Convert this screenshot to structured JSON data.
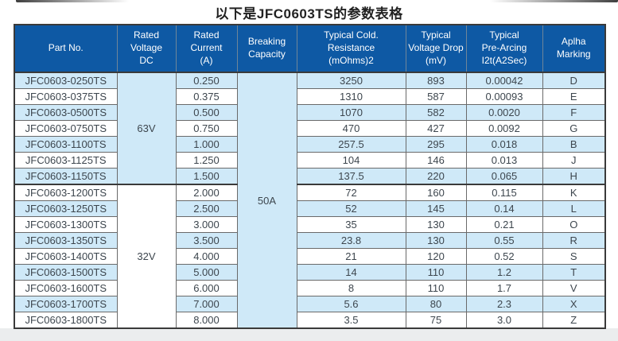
{
  "title": "以下是JFC0603TS的参数表格",
  "colors": {
    "header_bg": "#0e59a4",
    "header_text": "#ffffff",
    "row_bg": "#ffffff",
    "row_alt_bg": "#cfe9f8",
    "grid_line": "#6a6a6a",
    "outer_border": "#3a3a3a",
    "text": "#3d464e"
  },
  "table": {
    "columns": [
      "Part No.",
      "Rated\nVoltage\nDC",
      "Rated\nCurrent\n(A)",
      "Breaking\nCapacity",
      "Typical Cold.\nResistance\n(mOhms)2",
      "Typical\nVoltage Drop\n(mV)",
      "Typical\nPre-Arcing\nI2t(A2Sec)",
      "Aplha\nMarking"
    ],
    "voltage_groups": [
      {
        "label": "63V",
        "row_span": 7
      },
      {
        "label": "32V",
        "row_span": 9
      }
    ],
    "breaking_capacity": {
      "label": "50A",
      "row_span": 16
    },
    "rows": [
      {
        "part_no": "JFC0603-0250TS",
        "rated_current": "0.250",
        "cold_resistance": "3250",
        "voltage_drop": "893",
        "pre_arcing_i2t": "0.00042",
        "alpha_marking": "D"
      },
      {
        "part_no": "JFC0603-0375TS",
        "rated_current": "0.375",
        "cold_resistance": "1310",
        "voltage_drop": "587",
        "pre_arcing_i2t": "0.00093",
        "alpha_marking": "E"
      },
      {
        "part_no": "JFC0603-0500TS",
        "rated_current": "0.500",
        "cold_resistance": "1070",
        "voltage_drop": "582",
        "pre_arcing_i2t": "0.0020",
        "alpha_marking": "F"
      },
      {
        "part_no": "JFC0603-0750TS",
        "rated_current": "0.750",
        "cold_resistance": "470",
        "voltage_drop": "427",
        "pre_arcing_i2t": "0.0092",
        "alpha_marking": "G"
      },
      {
        "part_no": "JFC0603-1100TS",
        "rated_current": "1.000",
        "cold_resistance": "257.5",
        "voltage_drop": "295",
        "pre_arcing_i2t": "0.018",
        "alpha_marking": "B"
      },
      {
        "part_no": "JFC0603-1125TS",
        "rated_current": "1.250",
        "cold_resistance": "104",
        "voltage_drop": "146",
        "pre_arcing_i2t": "0.013",
        "alpha_marking": "J"
      },
      {
        "part_no": "JFC0603-1150TS",
        "rated_current": "1.500",
        "cold_resistance": "137.5",
        "voltage_drop": "220",
        "pre_arcing_i2t": "0.065",
        "alpha_marking": "H"
      },
      {
        "part_no": "JFC0603-1200TS",
        "rated_current": "2.000",
        "cold_resistance": "72",
        "voltage_drop": "160",
        "pre_arcing_i2t": "0.115",
        "alpha_marking": "K"
      },
      {
        "part_no": "JFC0603-1250TS",
        "rated_current": "2.500",
        "cold_resistance": "52",
        "voltage_drop": "145",
        "pre_arcing_i2t": "0.14",
        "alpha_marking": "L"
      },
      {
        "part_no": "JFC0603-1300TS",
        "rated_current": "3.000",
        "cold_resistance": "35",
        "voltage_drop": "130",
        "pre_arcing_i2t": "0.21",
        "alpha_marking": "O"
      },
      {
        "part_no": "JFC0603-1350TS",
        "rated_current": "3.500",
        "cold_resistance": "23.8",
        "voltage_drop": "130",
        "pre_arcing_i2t": "0.55",
        "alpha_marking": "R"
      },
      {
        "part_no": "JFC0603-1400TS",
        "rated_current": "4.000",
        "cold_resistance": "21",
        "voltage_drop": "120",
        "pre_arcing_i2t": "0.52",
        "alpha_marking": "S"
      },
      {
        "part_no": "JFC0603-1500TS",
        "rated_current": "5.000",
        "cold_resistance": "14",
        "voltage_drop": "110",
        "pre_arcing_i2t": "1.2",
        "alpha_marking": "T"
      },
      {
        "part_no": "JFC0603-1600TS",
        "rated_current": "6.000",
        "cold_resistance": "8",
        "voltage_drop": "110",
        "pre_arcing_i2t": "1.7",
        "alpha_marking": "V"
      },
      {
        "part_no": "JFC0603-1700TS",
        "rated_current": "7.000",
        "cold_resistance": "5.6",
        "voltage_drop": "80",
        "pre_arcing_i2t": "2.3",
        "alpha_marking": "X"
      },
      {
        "part_no": "JFC0603-1800TS",
        "rated_current": "8.000",
        "cold_resistance": "3.5",
        "voltage_drop": "75",
        "pre_arcing_i2t": "3.0",
        "alpha_marking": "Z"
      }
    ]
  }
}
